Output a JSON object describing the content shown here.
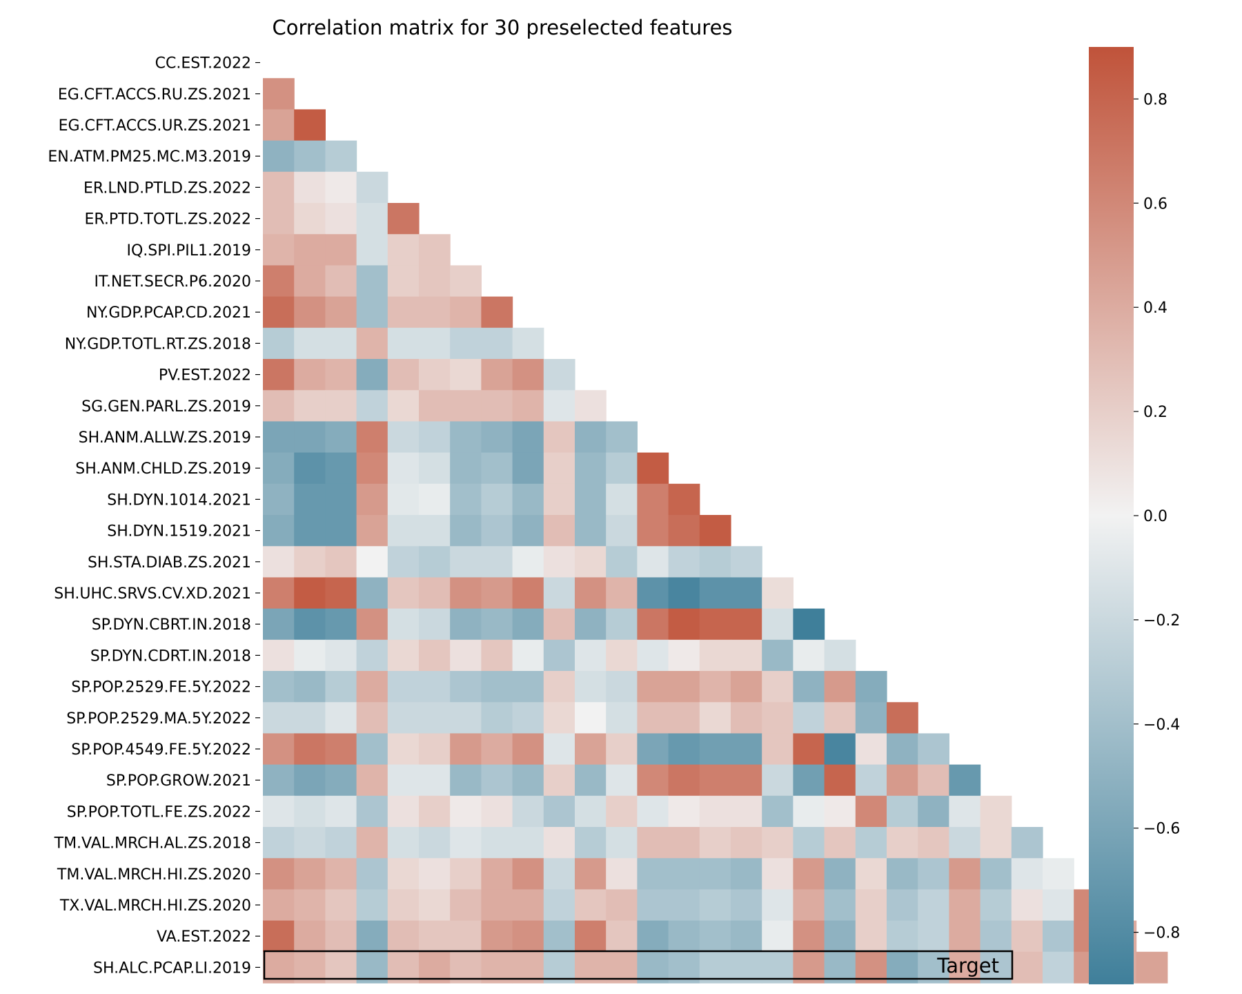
{
  "chart_data": {
    "type": "heatmap",
    "title": "Correlation matrix for 30 preselected features",
    "row_labels": [
      "CC.EST.2022",
      "EG.CFT.ACCS.RU.ZS.2021",
      "EG.CFT.ACCS.UR.ZS.2021",
      "EN.ATM.PM25.MC.M3.2019",
      "ER.LND.PTLD.ZS.2022",
      "ER.PTD.TOTL.ZS.2022",
      "IQ.SPI.PIL1.2019",
      "IT.NET.SECR.P6.2020",
      "NY.GDP.PCAP.CD.2021",
      "NY.GDP.TOTL.RT.ZS.2018",
      "PV.EST.2022",
      "SG.GEN.PARL.ZS.2019",
      "SH.ANM.ALLW.ZS.2019",
      "SH.ANM.CHLD.ZS.2019",
      "SH.DYN.1014.2021",
      "SH.DYN.1519.2021",
      "SH.STA.DIAB.ZS.2021",
      "SH.UHC.SRVS.CV.XD.2021",
      "SP.DYN.CBRT.IN.2018",
      "SP.DYN.CDRT.IN.2018",
      "SP.POP.2529.FE.5Y.2022",
      "SP.POP.2529.MA.5Y.2022",
      "SP.POP.4549.FE.5Y.2022",
      "SP.POP.GROW.2021",
      "SP.POP.TOTL.FE.ZS.2022",
      "TM.VAL.MRCH.AL.ZS.2018",
      "TM.VAL.MRCH.HI.ZS.2020",
      "TX.VAL.MRCH.HI.ZS.2020",
      "VA.EST.2022",
      "SH.ALC.PCAP.LI.2019"
    ],
    "matrix_lower_triangle": [
      [],
      [
        0.55
      ],
      [
        0.45,
        0.85
      ],
      [
        -0.5,
        -0.4,
        -0.3
      ],
      [
        0.3,
        0.1,
        0.05,
        -0.2
      ],
      [
        0.3,
        0.15,
        0.1,
        -0.15,
        0.7
      ],
      [
        0.35,
        0.4,
        0.4,
        -0.15,
        0.2,
        0.25
      ],
      [
        0.65,
        0.4,
        0.3,
        -0.4,
        0.2,
        0.25,
        0.2
      ],
      [
        0.75,
        0.55,
        0.45,
        -0.4,
        0.3,
        0.3,
        0.35,
        0.7
      ],
      [
        -0.3,
        -0.15,
        -0.15,
        0.35,
        -0.15,
        -0.15,
        -0.25,
        -0.25,
        -0.15
      ],
      [
        0.7,
        0.4,
        0.35,
        -0.55,
        0.3,
        0.2,
        0.15,
        0.45,
        0.55,
        -0.2
      ],
      [
        0.3,
        0.2,
        0.2,
        -0.25,
        0.15,
        0.3,
        0.3,
        0.3,
        0.35,
        -0.1,
        0.1
      ],
      [
        -0.6,
        -0.6,
        -0.55,
        0.65,
        -0.2,
        -0.25,
        -0.45,
        -0.5,
        -0.6,
        0.25,
        -0.5,
        -0.4
      ],
      [
        -0.55,
        -0.75,
        -0.7,
        0.6,
        -0.1,
        -0.15,
        -0.45,
        -0.4,
        -0.6,
        0.2,
        -0.45,
        -0.3,
        0.85
      ],
      [
        -0.5,
        -0.7,
        -0.7,
        0.5,
        -0.08,
        -0.05,
        -0.4,
        -0.3,
        -0.45,
        0.2,
        -0.45,
        -0.15,
        0.65,
        0.8
      ],
      [
        -0.55,
        -0.7,
        -0.7,
        0.45,
        -0.15,
        -0.15,
        -0.45,
        -0.35,
        -0.5,
        0.3,
        -0.45,
        -0.2,
        0.65,
        0.75,
        0.85
      ],
      [
        0.1,
        0.2,
        0.25,
        0.0,
        -0.25,
        -0.3,
        -0.2,
        -0.2,
        -0.05,
        0.1,
        0.15,
        -0.3,
        -0.1,
        -0.25,
        -0.3,
        -0.25
      ],
      [
        0.65,
        0.85,
        0.8,
        -0.5,
        0.25,
        0.3,
        0.55,
        0.5,
        0.65,
        -0.2,
        0.55,
        0.35,
        -0.75,
        -0.85,
        -0.75,
        -0.75,
        0.12
      ],
      [
        -0.6,
        -0.75,
        -0.7,
        0.55,
        -0.15,
        -0.2,
        -0.5,
        -0.45,
        -0.55,
        0.3,
        -0.5,
        -0.3,
        0.7,
        0.85,
        0.8,
        0.8,
        -0.15,
        -0.9
      ],
      [
        0.1,
        -0.05,
        -0.1,
        -0.25,
        0.15,
        0.25,
        0.1,
        0.25,
        -0.05,
        -0.35,
        -0.1,
        0.15,
        -0.1,
        0.05,
        0.15,
        0.15,
        -0.45,
        -0.05,
        -0.15
      ],
      [
        -0.4,
        -0.45,
        -0.3,
        0.4,
        -0.25,
        -0.25,
        -0.35,
        -0.4,
        -0.4,
        0.2,
        -0.15,
        -0.2,
        0.45,
        0.45,
        0.35,
        0.45,
        0.2,
        -0.5,
        0.5,
        -0.55
      ],
      [
        -0.2,
        -0.2,
        -0.1,
        0.3,
        -0.2,
        -0.2,
        -0.2,
        -0.3,
        -0.25,
        0.15,
        0.0,
        -0.15,
        0.3,
        0.3,
        0.15,
        0.3,
        0.25,
        -0.25,
        0.25,
        -0.5,
        0.75
      ],
      [
        0.55,
        0.7,
        0.65,
        -0.4,
        0.15,
        0.2,
        0.5,
        0.4,
        0.55,
        -0.1,
        0.45,
        0.2,
        -0.6,
        -0.7,
        -0.65,
        -0.65,
        0.25,
        0.8,
        -0.85,
        0.1,
        -0.5,
        -0.35
      ],
      [
        -0.5,
        -0.6,
        -0.55,
        0.35,
        -0.1,
        -0.1,
        -0.45,
        -0.35,
        -0.45,
        0.2,
        -0.45,
        -0.1,
        0.6,
        0.7,
        0.65,
        0.65,
        -0.2,
        -0.65,
        0.8,
        -0.25,
        0.5,
        0.3,
        -0.7
      ],
      [
        -0.1,
        -0.15,
        -0.1,
        -0.35,
        0.1,
        0.2,
        0.05,
        0.1,
        -0.2,
        -0.35,
        -0.15,
        0.2,
        -0.1,
        0.05,
        0.1,
        0.1,
        -0.4,
        -0.05,
        0.05,
        0.6,
        -0.3,
        -0.5,
        -0.1,
        0.15
      ],
      [
        -0.25,
        -0.2,
        -0.25,
        0.35,
        -0.15,
        -0.2,
        -0.1,
        -0.15,
        -0.15,
        0.1,
        -0.3,
        -0.15,
        0.3,
        0.3,
        0.2,
        0.25,
        0.2,
        -0.3,
        0.25,
        -0.3,
        0.2,
        0.25,
        -0.2,
        0.15,
        -0.35
      ],
      [
        0.55,
        0.45,
        0.35,
        -0.35,
        0.15,
        0.1,
        0.2,
        0.4,
        0.55,
        -0.2,
        0.5,
        0.1,
        -0.4,
        -0.4,
        -0.4,
        -0.45,
        0.1,
        0.5,
        -0.5,
        0.15,
        -0.45,
        -0.35,
        0.5,
        -0.4,
        -0.1,
        -0.05
      ],
      [
        0.4,
        0.35,
        0.25,
        -0.3,
        0.2,
        0.15,
        0.3,
        0.4,
        0.4,
        -0.25,
        0.25,
        0.3,
        -0.35,
        -0.35,
        -0.3,
        -0.35,
        -0.1,
        0.4,
        -0.4,
        0.2,
        -0.35,
        -0.25,
        0.4,
        -0.3,
        0.1,
        -0.1,
        0.6
      ],
      [
        0.75,
        0.4,
        0.3,
        -0.55,
        0.3,
        0.25,
        0.25,
        0.5,
        0.55,
        -0.4,
        0.65,
        0.25,
        -0.55,
        -0.45,
        -0.4,
        -0.45,
        -0.05,
        0.55,
        -0.5,
        0.2,
        -0.3,
        -0.25,
        0.4,
        -0.35,
        0.25,
        -0.35,
        0.6,
        0.4
      ],
      [
        0.4,
        0.35,
        0.25,
        -0.45,
        0.3,
        0.4,
        0.3,
        0.35,
        0.35,
        -0.3,
        0.35,
        0.35,
        -0.45,
        -0.4,
        -0.3,
        -0.3,
        -0.3,
        0.5,
        -0.45,
        0.55,
        -0.55,
        -0.4,
        0.4,
        -0.35,
        0.3,
        -0.25,
        0.5,
        0.4,
        0.45
      ]
    ],
    "colorbar": {
      "vmin": -0.9,
      "vmax": 0.9,
      "ticks": [
        0.8,
        0.6,
        0.4,
        0.2,
        0.0,
        -0.2,
        -0.4,
        -0.6,
        -0.8
      ],
      "tick_labels": [
        "0.8",
        "0.6",
        "0.4",
        "0.2",
        "0.0",
        "−0.2",
        "−0.4",
        "−0.6",
        "−0.8"
      ],
      "colors": {
        "negative": "#3f7f9a",
        "center": "#f2f2f2",
        "positive": "#c0533a"
      }
    },
    "highlight": {
      "row": "SH.ALC.PCAP.LI.2019",
      "label": "Target"
    }
  }
}
